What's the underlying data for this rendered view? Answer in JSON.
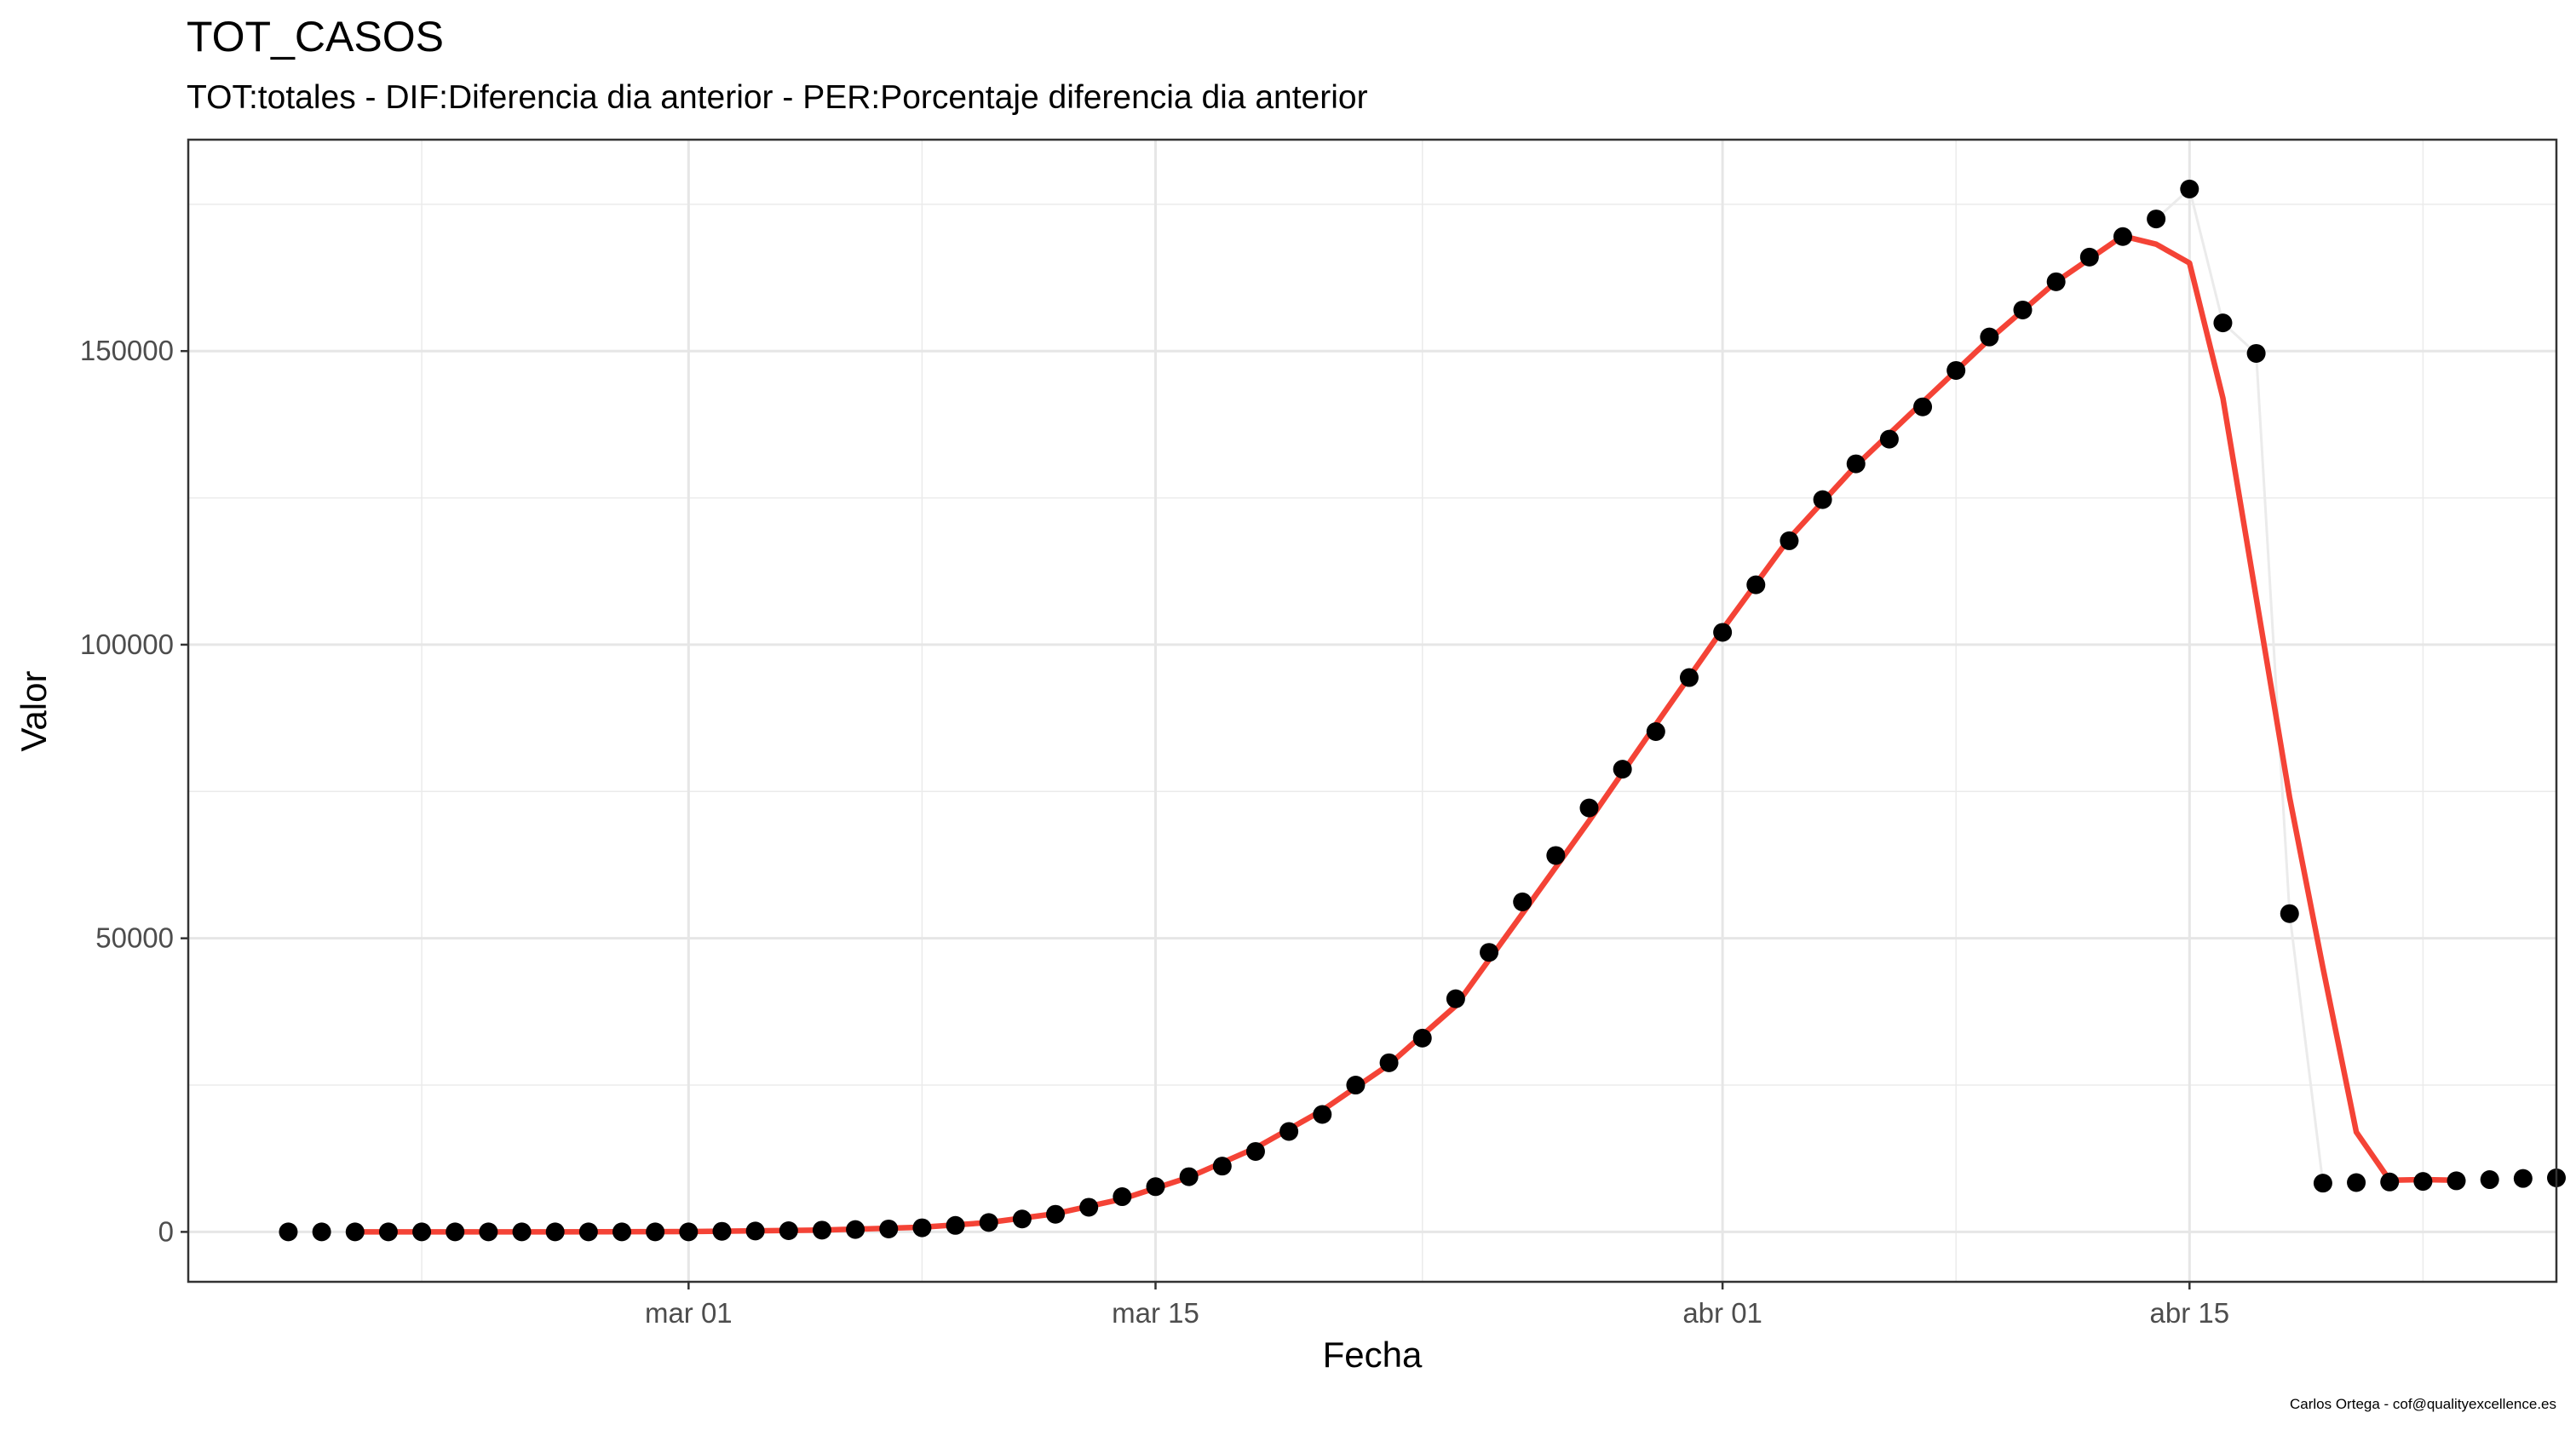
{
  "chart_data": {
    "type": "scatter",
    "title": "TOT_CASOS",
    "subtitle": "TOT:totales - DIF:Diferencia dia anterior - PER:Porcentaje diferencia dia anterior",
    "xlabel": "Fecha",
    "ylabel": "Valor",
    "caption": "Carlos Ortega - cof@qualityexcellence.es",
    "x_range": [
      "2020-02-15",
      "2020-04-26"
    ],
    "ylim": [
      -8500,
      186000
    ],
    "x_ticks": [
      {
        "date": "2020-03-01",
        "label": "mar 01"
      },
      {
        "date": "2020-03-15",
        "label": "mar 15"
      },
      {
        "date": "2020-04-01",
        "label": "abr 01"
      },
      {
        "date": "2020-04-15",
        "label": "abr 15"
      }
    ],
    "x_minor_ticks": [
      "2020-02-22",
      "2020-03-08",
      "2020-03-23",
      "2020-04-08",
      "2020-04-22"
    ],
    "y_ticks": [
      0,
      50000,
      100000,
      150000
    ],
    "y_minor_ticks": [
      25000,
      75000,
      125000,
      175000
    ],
    "grid": true,
    "series": [
      {
        "kind": "points",
        "color": "#000000",
        "values": [
          {
            "x": "2020-02-18",
            "y": 0
          },
          {
            "x": "2020-02-19",
            "y": 0
          },
          {
            "x": "2020-02-20",
            "y": 0
          },
          {
            "x": "2020-02-21",
            "y": 0
          },
          {
            "x": "2020-02-22",
            "y": 0
          },
          {
            "x": "2020-02-23",
            "y": 0
          },
          {
            "x": "2020-02-24",
            "y": 0
          },
          {
            "x": "2020-02-25",
            "y": 0
          },
          {
            "x": "2020-02-26",
            "y": 0
          },
          {
            "x": "2020-02-27",
            "y": 0
          },
          {
            "x": "2020-02-28",
            "y": 0
          },
          {
            "x": "2020-02-29",
            "y": 0
          },
          {
            "x": "2020-03-01",
            "y": 0
          },
          {
            "x": "2020-03-02",
            "y": 100
          },
          {
            "x": "2020-03-03",
            "y": 150
          },
          {
            "x": "2020-03-04",
            "y": 200
          },
          {
            "x": "2020-03-05",
            "y": 300
          },
          {
            "x": "2020-03-06",
            "y": 400
          },
          {
            "x": "2020-03-07",
            "y": 500
          },
          {
            "x": "2020-03-08",
            "y": 700
          },
          {
            "x": "2020-03-09",
            "y": 1100
          },
          {
            "x": "2020-03-10",
            "y": 1600
          },
          {
            "x": "2020-03-11",
            "y": 2200
          },
          {
            "x": "2020-03-12",
            "y": 3000
          },
          {
            "x": "2020-03-13",
            "y": 4200
          },
          {
            "x": "2020-03-14",
            "y": 6000
          },
          {
            "x": "2020-03-15",
            "y": 7700
          },
          {
            "x": "2020-03-16",
            "y": 9400
          },
          {
            "x": "2020-03-17",
            "y": 11200
          },
          {
            "x": "2020-03-18",
            "y": 13700
          },
          {
            "x": "2020-03-19",
            "y": 17100
          },
          {
            "x": "2020-03-20",
            "y": 20000
          },
          {
            "x": "2020-03-21",
            "y": 25000
          },
          {
            "x": "2020-03-22",
            "y": 28800
          },
          {
            "x": "2020-03-23",
            "y": 33000
          },
          {
            "x": "2020-03-24",
            "y": 39700
          },
          {
            "x": "2020-03-25",
            "y": 47600
          },
          {
            "x": "2020-03-26",
            "y": 56200
          },
          {
            "x": "2020-03-27",
            "y": 64100
          },
          {
            "x": "2020-03-28",
            "y": 72200
          },
          {
            "x": "2020-03-29",
            "y": 78800
          },
          {
            "x": "2020-03-30",
            "y": 85200
          },
          {
            "x": "2020-03-31",
            "y": 94400
          },
          {
            "x": "2020-04-01",
            "y": 102100
          },
          {
            "x": "2020-04-02",
            "y": 110200
          },
          {
            "x": "2020-04-03",
            "y": 117700
          },
          {
            "x": "2020-04-04",
            "y": 124700
          },
          {
            "x": "2020-04-05",
            "y": 130800
          },
          {
            "x": "2020-04-06",
            "y": 135000
          },
          {
            "x": "2020-04-07",
            "y": 140500
          },
          {
            "x": "2020-04-08",
            "y": 146700
          },
          {
            "x": "2020-04-09",
            "y": 152400
          },
          {
            "x": "2020-04-10",
            "y": 157000
          },
          {
            "x": "2020-04-11",
            "y": 161800
          },
          {
            "x": "2020-04-12",
            "y": 166000
          },
          {
            "x": "2020-04-13",
            "y": 169500
          },
          {
            "x": "2020-04-14",
            "y": 172500
          },
          {
            "x": "2020-04-15",
            "y": 177600
          },
          {
            "x": "2020-04-16",
            "y": 154800
          },
          {
            "x": "2020-04-17",
            "y": 149600
          },
          {
            "x": "2020-04-18",
            "y": 54200
          },
          {
            "x": "2020-04-19",
            "y": 8300
          },
          {
            "x": "2020-04-20",
            "y": 8400
          },
          {
            "x": "2020-04-21",
            "y": 8500
          },
          {
            "x": "2020-04-22",
            "y": 8600
          },
          {
            "x": "2020-04-23",
            "y": 8700
          },
          {
            "x": "2020-04-24",
            "y": 8900
          },
          {
            "x": "2020-04-25",
            "y": 9100
          },
          {
            "x": "2020-04-26",
            "y": 9200
          }
        ]
      },
      {
        "kind": "line",
        "color": "#ebebeb",
        "values": [
          {
            "x": "2020-04-14",
            "y": 172500
          },
          {
            "x": "2020-04-15",
            "y": 177600
          },
          {
            "x": "2020-04-16",
            "y": 154800
          },
          {
            "x": "2020-04-17",
            "y": 149600
          },
          {
            "x": "2020-04-18",
            "y": 54200
          },
          {
            "x": "2020-04-19",
            "y": 8300
          }
        ]
      },
      {
        "kind": "line",
        "color": "#f44336",
        "values": [
          {
            "x": "2020-02-20",
            "y": 0
          },
          {
            "x": "2020-02-26",
            "y": 0
          },
          {
            "x": "2020-03-01",
            "y": 60
          },
          {
            "x": "2020-03-05",
            "y": 300
          },
          {
            "x": "2020-03-08",
            "y": 800
          },
          {
            "x": "2020-03-10",
            "y": 1600
          },
          {
            "x": "2020-03-12",
            "y": 3100
          },
          {
            "x": "2020-03-14",
            "y": 5600
          },
          {
            "x": "2020-03-16",
            "y": 9300
          },
          {
            "x": "2020-03-18",
            "y": 14300
          },
          {
            "x": "2020-03-20",
            "y": 20700
          },
          {
            "x": "2020-03-22",
            "y": 28500
          },
          {
            "x": "2020-03-24",
            "y": 38500
          },
          {
            "x": "2020-03-26",
            "y": 54200
          },
          {
            "x": "2020-03-28",
            "y": 70000
          },
          {
            "x": "2020-03-30",
            "y": 86400
          },
          {
            "x": "2020-04-01",
            "y": 102600
          },
          {
            "x": "2020-04-03",
            "y": 118100
          },
          {
            "x": "2020-04-05",
            "y": 130500
          },
          {
            "x": "2020-04-07",
            "y": 141300
          },
          {
            "x": "2020-04-09",
            "y": 152000
          },
          {
            "x": "2020-04-11",
            "y": 161800
          },
          {
            "x": "2020-04-13",
            "y": 169600
          },
          {
            "x": "2020-04-14",
            "y": 168200
          },
          {
            "x": "2020-04-15",
            "y": 165000
          },
          {
            "x": "2020-04-16",
            "y": 142000
          },
          {
            "x": "2020-04-17",
            "y": 108000
          },
          {
            "x": "2020-04-18",
            "y": 74000
          },
          {
            "x": "2020-04-19",
            "y": 45000
          },
          {
            "x": "2020-04-20",
            "y": 17000
          },
          {
            "x": "2020-04-21",
            "y": 8800
          },
          {
            "x": "2020-04-22",
            "y": 8900
          },
          {
            "x": "2020-04-23",
            "y": 8800
          }
        ]
      }
    ]
  }
}
